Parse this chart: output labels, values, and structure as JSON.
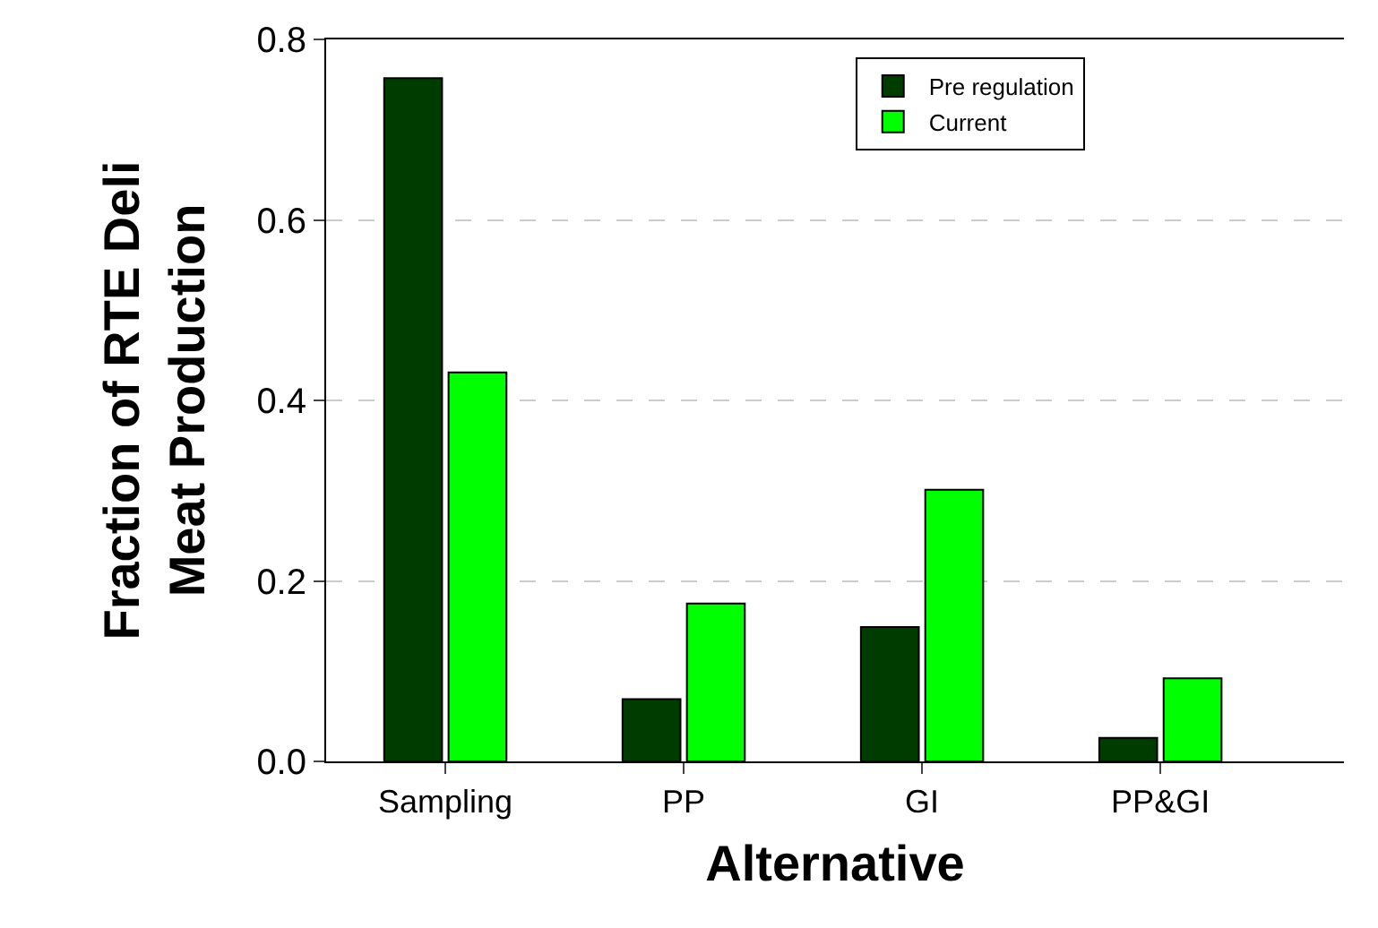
{
  "chart_data": {
    "type": "bar",
    "xlabel": "Alternative",
    "ylabel": "Fraction of RTE Deli\nMeat Production",
    "categories": [
      "Sampling",
      "PP",
      "GI",
      "PP&GI"
    ],
    "series": [
      {
        "name": "Pre regulation",
        "color": "#003c00",
        "values": [
          0.757,
          0.069,
          0.149,
          0.026
        ]
      },
      {
        "name": "Current",
        "color": "#00ff00",
        "values": [
          0.431,
          0.175,
          0.301,
          0.092
        ]
      }
    ],
    "ylim": [
      0,
      0.8
    ],
    "yticks": [
      {
        "value": 0,
        "label": "0.0"
      },
      0.2,
      0.4,
      0.6,
      0.8
    ],
    "grid": "y",
    "legend": "top right"
  }
}
